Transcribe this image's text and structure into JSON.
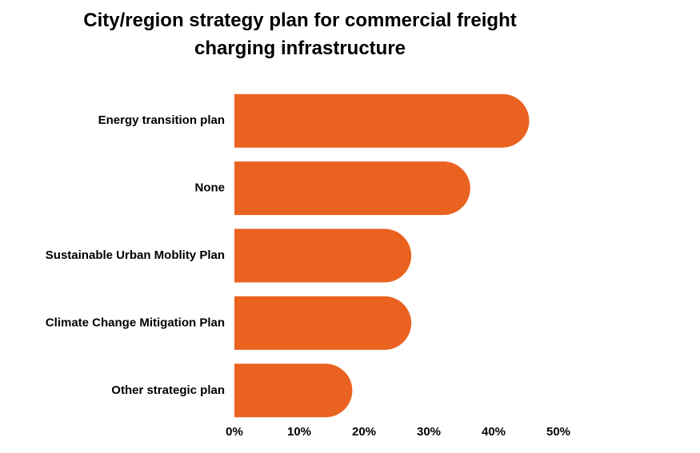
{
  "chart_data": {
    "type": "bar",
    "orientation": "horizontal",
    "title": "City/region strategy plan for commercial freight charging infrastructure",
    "categories": [
      "Energy transition plan",
      "None",
      "Sustainable Urban Moblity Plan",
      "Climate Change Mitigation Plan",
      "Other strategic plan"
    ],
    "values": [
      45.5,
      36.4,
      27.3,
      27.3,
      18.2
    ],
    "color": "#ea6220",
    "xlim": [
      0,
      50
    ],
    "xticks": [
      {
        "value": 0,
        "label": "0%"
      },
      {
        "value": 10,
        "label": "10%"
      },
      {
        "value": 20,
        "label": "20%"
      },
      {
        "value": 30,
        "label": "30%"
      },
      {
        "value": 40,
        "label": "40%"
      },
      {
        "value": 50,
        "label": "50%"
      }
    ],
    "grid": false
  }
}
